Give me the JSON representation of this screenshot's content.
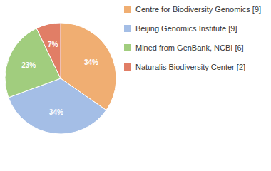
{
  "chart_data": {
    "type": "pie",
    "categories": [
      "Centre for Biodiversity Genomics [9]",
      "Beijing Genomics Institute [9]",
      "Mined from GenBank, NCBI [6]",
      "Naturalis Biodiversity Center [2]"
    ],
    "values": [
      34,
      34,
      23,
      7
    ],
    "value_labels": [
      "34%",
      "34%",
      "23%",
      "7%"
    ],
    "colors": [
      "#f0ae72",
      "#a4bee6",
      "#a1cd7e",
      "#e17e66"
    ],
    "data_labels": true,
    "legend": "top-right"
  }
}
